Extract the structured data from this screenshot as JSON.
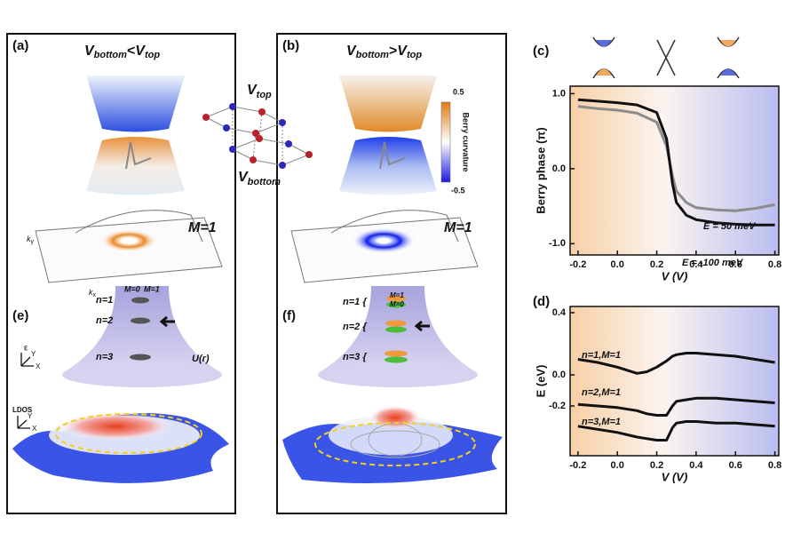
{
  "panels": [
    {
      "label": "(a)",
      "title": {
        "v1": "V",
        "sub1": "bottom",
        "op": "<",
        "v2": "V",
        "sub2": "top"
      },
      "M": "M=1",
      "kx": {
        "base": "k",
        "sub": "x"
      },
      "ky": {
        "base": "k",
        "sub": "y"
      }
    },
    {
      "label": "(b)",
      "title": {
        "v1": "V",
        "sub1": "bottom",
        "op": ">",
        "v2": "V",
        "sub2": "top"
      },
      "M": "M=1"
    },
    {
      "label": "(e)",
      "m0": "M=0",
      "m1": "M=1",
      "levels": [
        "n=1",
        "n=2",
        "n=3"
      ],
      "energy": "ε",
      "y": "Y",
      "x": "X",
      "potential": "U(r)",
      "ldos": "LDOS",
      "ldos_y": "Y",
      "ldos_x": "X"
    },
    {
      "label": "(f)",
      "m1": "M=1",
      "m0": "M=0",
      "levels": [
        "n=1 {",
        "n=2 {",
        "n=3 {"
      ]
    }
  ],
  "center": {
    "v_top": {
      "base": "V",
      "sub": "top"
    },
    "v_bottom": {
      "base": "V",
      "sub": "bottom"
    },
    "colorbar": {
      "max": "0.5",
      "min": "-0.5",
      "label": "Berry curvature"
    }
  },
  "chart_data": [
    {
      "type": "line",
      "panel_label": "(c)",
      "ylabel": "Berry phase (π)",
      "xlabel": "V (V)",
      "x": [
        -0.2,
        -0.1,
        0,
        0.1,
        0.2,
        0.25,
        0.28,
        0.3,
        0.35,
        0.4,
        0.5,
        0.6,
        0.7,
        0.8
      ],
      "series": [
        {
          "name": "E = 50 meV",
          "color": "#8c8c8c",
          "values": [
            0.83,
            0.8,
            0.78,
            0.74,
            0.62,
            0.3,
            -0.1,
            -0.3,
            -0.45,
            -0.52,
            -0.55,
            -0.56,
            -0.53,
            -0.48
          ]
        },
        {
          "name": "E = -100 meV",
          "color": "#111111",
          "values": [
            0.92,
            0.9,
            0.88,
            0.85,
            0.75,
            0.4,
            -0.2,
            -0.45,
            -0.62,
            -0.68,
            -0.72,
            -0.74,
            -0.75,
            -0.75
          ]
        }
      ],
      "xlim": [
        -0.24,
        0.82
      ],
      "ylim": [
        -1.15,
        1.1
      ],
      "xticks": [
        -0.2,
        {
          "value": 0,
          "label": "0.0"
        },
        0.2,
        0.4,
        0.6,
        0.8
      ],
      "yticks": [
        {
          "value": 1,
          "label": "1.0"
        },
        {
          "value": 0,
          "label": "0.0"
        },
        {
          "value": -1,
          "label": "-1.0"
        }
      ]
    },
    {
      "type": "line",
      "panel_label": "(d)",
      "ylabel": "E (eV)",
      "xlabel": "V (V)",
      "x": [
        -0.2,
        -0.1,
        0,
        0.1,
        0.15,
        0.2,
        0.25,
        0.28,
        0.3,
        0.35,
        0.4,
        0.5,
        0.6,
        0.7,
        0.8
      ],
      "series": [
        {
          "name": "n=1,M=1",
          "color": "#111111",
          "values": [
            0.1,
            0.08,
            0.05,
            0.01,
            0.02,
            0.05,
            0.09,
            0.12,
            0.13,
            0.14,
            0.14,
            0.13,
            0.12,
            0.1,
            0.08
          ]
        },
        {
          "name": "n=2,M=1",
          "color": "#111111",
          "values": [
            -0.19,
            -0.2,
            -0.21,
            -0.23,
            -0.25,
            -0.26,
            -0.26,
            -0.2,
            -0.17,
            -0.16,
            -0.15,
            -0.15,
            -0.16,
            -0.17,
            -0.18
          ]
        },
        {
          "name": "n=3,M=1",
          "color": "#111111",
          "values": [
            -0.33,
            -0.35,
            -0.37,
            -0.4,
            -0.41,
            -0.42,
            -0.42,
            -0.34,
            -0.31,
            -0.3,
            -0.3,
            -0.31,
            -0.31,
            -0.32,
            -0.33
          ]
        }
      ],
      "xlim": [
        -0.24,
        0.82
      ],
      "ylim": [
        -0.52,
        0.44
      ],
      "xticks": [
        -0.2,
        {
          "value": 0,
          "label": "0.0"
        },
        0.2,
        0.4,
        0.6,
        0.8
      ],
      "yticks": [
        0.4,
        {
          "value": 0,
          "label": "0.0"
        },
        -0.2
      ]
    }
  ]
}
